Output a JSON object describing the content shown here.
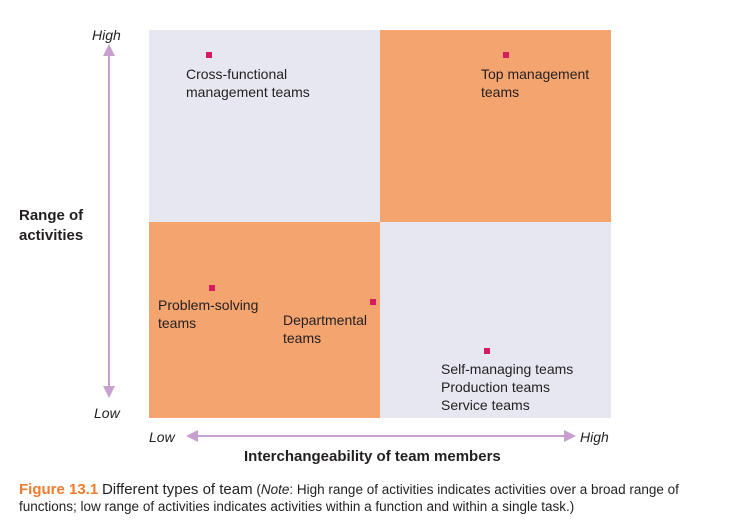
{
  "diagram": {
    "y_axis": {
      "title_line1": "Range of",
      "title_line2": "activities",
      "high": "High",
      "low": "Low"
    },
    "x_axis": {
      "title": "Interchangeability of team members",
      "low": "Low",
      "high": "High"
    },
    "quadrants": {
      "top_left": {
        "lines": [
          "Cross-functional",
          "management teams"
        ]
      },
      "top_right": {
        "lines": [
          "Top management",
          "teams"
        ]
      },
      "bottom_left_a": {
        "lines": [
          "Problem-solving",
          "teams"
        ]
      },
      "bottom_left_b": {
        "lines": [
          "Departmental",
          "teams"
        ]
      },
      "bottom_right": {
        "lines": [
          "Self-managing teams",
          "Production teams",
          "Service teams"
        ]
      }
    },
    "colors": {
      "light_quadrant": "#e7e7f2",
      "orange_quadrant": "#f4a46f",
      "marker": "#d81b60",
      "arrow": "#c8a0d0",
      "figure_label": "#ef7b2f"
    }
  },
  "caption": {
    "figure_label": "Figure 13.1",
    "title": "Different types of team",
    "note_open": "(",
    "note_word": "Note",
    "note_text": ": High range of activities indicates activities over a broad range of functions; low range of activities indicates activities within a function and within a single task.)"
  }
}
